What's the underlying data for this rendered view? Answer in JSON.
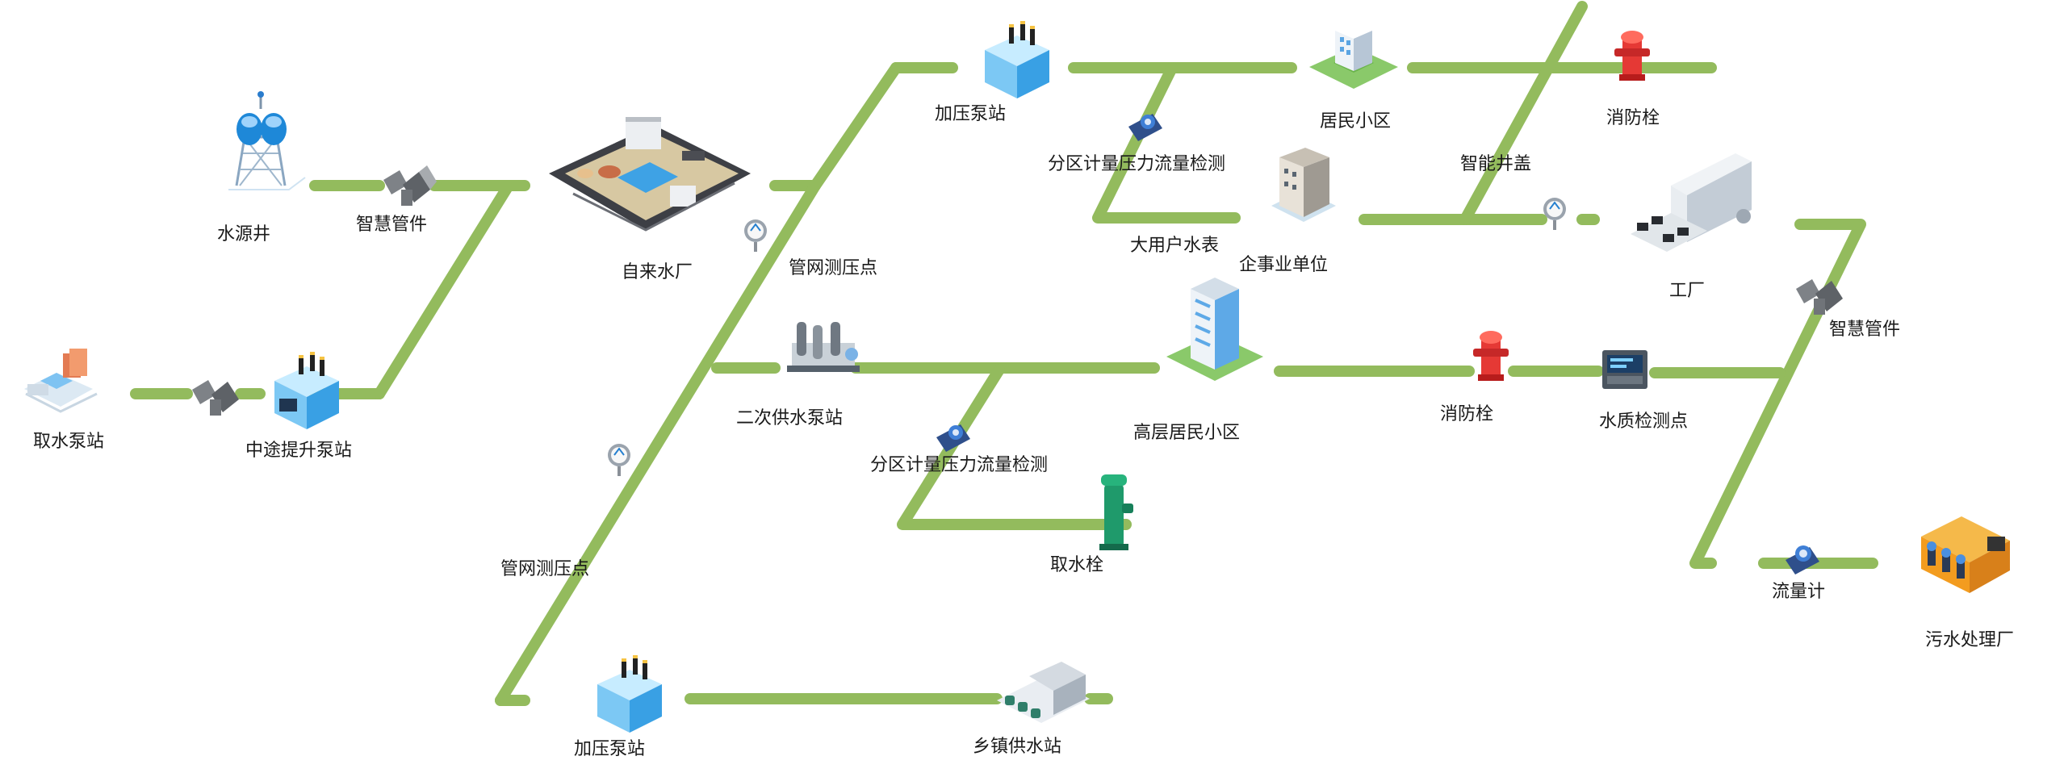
{
  "nodes": {
    "water_source_well": "水源井",
    "smart_pipe_1": "智慧管件",
    "intake_pump_station": "取水泵站",
    "midway_booster_station": "中途提升泵站",
    "waterworks": "自来水厂",
    "pressure_point_1": "管网测压点",
    "pressure_point_2": "管网测压点",
    "booster_station_top": "加压泵站",
    "zone_meter_top": "分区计量压力流量检测",
    "residential_top": "居民小区",
    "large_user_meter": "大用户水表",
    "enterprise": "企事业单位",
    "hydrant_top": "消防栓",
    "smart_manhole": "智能井盖",
    "factory": "工厂",
    "smart_pipe_2": "智慧管件",
    "secondary_pump_station": "二次供水泵站",
    "highrise_residential": "高层居民小区",
    "hydrant_mid": "消防栓",
    "water_quality_point": "水质检测点",
    "zone_meter_mid": "分区计量压力流量检测",
    "water_intake_hydrant": "取水栓",
    "flow_meter": "流量计",
    "sewage_plant": "污水处理厂",
    "booster_station_bottom": "加压泵站",
    "township_station": "乡镇供水站"
  },
  "colors": {
    "pipe": "#93bb5d",
    "label_text": "#1a1a1a",
    "building_blue": "#4a9fe0",
    "hydrant_red": "#e53935",
    "hydrant_green": "#1f9a6b",
    "factory_orange": "#f39c1f"
  },
  "icons": [
    "water-tower-icon",
    "smart-pipe-fitting-icon",
    "pump-station-icon",
    "booster-building-icon",
    "water-plant-icon",
    "pressure-gauge-icon",
    "flow-meter-valve-icon",
    "residential-building-icon",
    "office-building-icon",
    "fire-hydrant-icon",
    "factory-icon",
    "secondary-pump-icon",
    "highrise-icon",
    "water-quality-analyzer-icon",
    "intake-hydrant-icon",
    "sewage-plant-icon",
    "township-station-icon"
  ]
}
